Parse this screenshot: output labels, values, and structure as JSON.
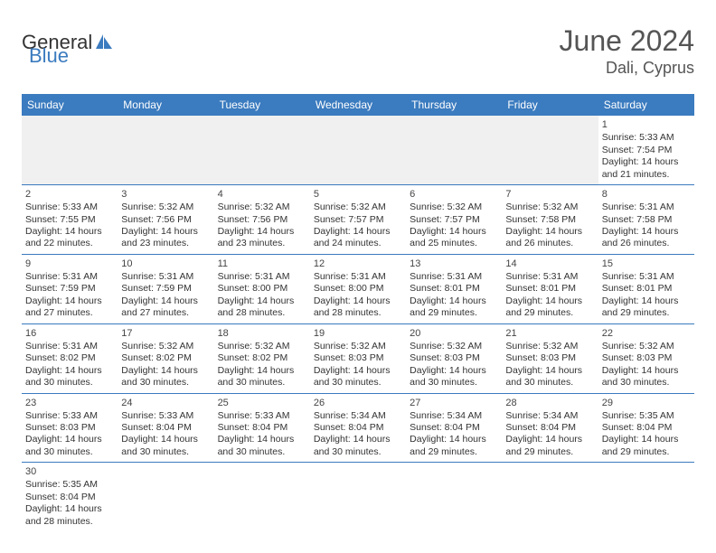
{
  "logo": {
    "text1": "General",
    "text2": "Blue"
  },
  "title": "June 2024",
  "subtitle": "Dali, Cyprus",
  "colors": {
    "header_bg": "#3b7bbf",
    "header_text": "#ffffff",
    "cell_border": "#3b7bbf",
    "shade_bg": "#f0f0f0",
    "body_text": "#333333",
    "title_text": "#555555"
  },
  "daynames": [
    "Sunday",
    "Monday",
    "Tuesday",
    "Wednesday",
    "Thursday",
    "Friday",
    "Saturday"
  ],
  "weeks": [
    [
      null,
      null,
      null,
      null,
      null,
      null,
      {
        "n": "1",
        "sr": "5:33 AM",
        "ss": "7:54 PM",
        "dl": "14 hours and 21 minutes."
      }
    ],
    [
      {
        "n": "2",
        "sr": "5:33 AM",
        "ss": "7:55 PM",
        "dl": "14 hours and 22 minutes."
      },
      {
        "n": "3",
        "sr": "5:32 AM",
        "ss": "7:56 PM",
        "dl": "14 hours and 23 minutes."
      },
      {
        "n": "4",
        "sr": "5:32 AM",
        "ss": "7:56 PM",
        "dl": "14 hours and 23 minutes."
      },
      {
        "n": "5",
        "sr": "5:32 AM",
        "ss": "7:57 PM",
        "dl": "14 hours and 24 minutes."
      },
      {
        "n": "6",
        "sr": "5:32 AM",
        "ss": "7:57 PM",
        "dl": "14 hours and 25 minutes."
      },
      {
        "n": "7",
        "sr": "5:32 AM",
        "ss": "7:58 PM",
        "dl": "14 hours and 26 minutes."
      },
      {
        "n": "8",
        "sr": "5:31 AM",
        "ss": "7:58 PM",
        "dl": "14 hours and 26 minutes."
      }
    ],
    [
      {
        "n": "9",
        "sr": "5:31 AM",
        "ss": "7:59 PM",
        "dl": "14 hours and 27 minutes."
      },
      {
        "n": "10",
        "sr": "5:31 AM",
        "ss": "7:59 PM",
        "dl": "14 hours and 27 minutes."
      },
      {
        "n": "11",
        "sr": "5:31 AM",
        "ss": "8:00 PM",
        "dl": "14 hours and 28 minutes."
      },
      {
        "n": "12",
        "sr": "5:31 AM",
        "ss": "8:00 PM",
        "dl": "14 hours and 28 minutes."
      },
      {
        "n": "13",
        "sr": "5:31 AM",
        "ss": "8:01 PM",
        "dl": "14 hours and 29 minutes."
      },
      {
        "n": "14",
        "sr": "5:31 AM",
        "ss": "8:01 PM",
        "dl": "14 hours and 29 minutes."
      },
      {
        "n": "15",
        "sr": "5:31 AM",
        "ss": "8:01 PM",
        "dl": "14 hours and 29 minutes."
      }
    ],
    [
      {
        "n": "16",
        "sr": "5:31 AM",
        "ss": "8:02 PM",
        "dl": "14 hours and 30 minutes."
      },
      {
        "n": "17",
        "sr": "5:32 AM",
        "ss": "8:02 PM",
        "dl": "14 hours and 30 minutes."
      },
      {
        "n": "18",
        "sr": "5:32 AM",
        "ss": "8:02 PM",
        "dl": "14 hours and 30 minutes."
      },
      {
        "n": "19",
        "sr": "5:32 AM",
        "ss": "8:03 PM",
        "dl": "14 hours and 30 minutes."
      },
      {
        "n": "20",
        "sr": "5:32 AM",
        "ss": "8:03 PM",
        "dl": "14 hours and 30 minutes."
      },
      {
        "n": "21",
        "sr": "5:32 AM",
        "ss": "8:03 PM",
        "dl": "14 hours and 30 minutes."
      },
      {
        "n": "22",
        "sr": "5:32 AM",
        "ss": "8:03 PM",
        "dl": "14 hours and 30 minutes."
      }
    ],
    [
      {
        "n": "23",
        "sr": "5:33 AM",
        "ss": "8:03 PM",
        "dl": "14 hours and 30 minutes."
      },
      {
        "n": "24",
        "sr": "5:33 AM",
        "ss": "8:04 PM",
        "dl": "14 hours and 30 minutes."
      },
      {
        "n": "25",
        "sr": "5:33 AM",
        "ss": "8:04 PM",
        "dl": "14 hours and 30 minutes."
      },
      {
        "n": "26",
        "sr": "5:34 AM",
        "ss": "8:04 PM",
        "dl": "14 hours and 30 minutes."
      },
      {
        "n": "27",
        "sr": "5:34 AM",
        "ss": "8:04 PM",
        "dl": "14 hours and 29 minutes."
      },
      {
        "n": "28",
        "sr": "5:34 AM",
        "ss": "8:04 PM",
        "dl": "14 hours and 29 minutes."
      },
      {
        "n": "29",
        "sr": "5:35 AM",
        "ss": "8:04 PM",
        "dl": "14 hours and 29 minutes."
      }
    ],
    [
      {
        "n": "30",
        "sr": "5:35 AM",
        "ss": "8:04 PM",
        "dl": "14 hours and 28 minutes."
      },
      null,
      null,
      null,
      null,
      null,
      null
    ]
  ],
  "labels": {
    "sunrise": "Sunrise: ",
    "sunset": "Sunset: ",
    "daylight": "Daylight: "
  }
}
